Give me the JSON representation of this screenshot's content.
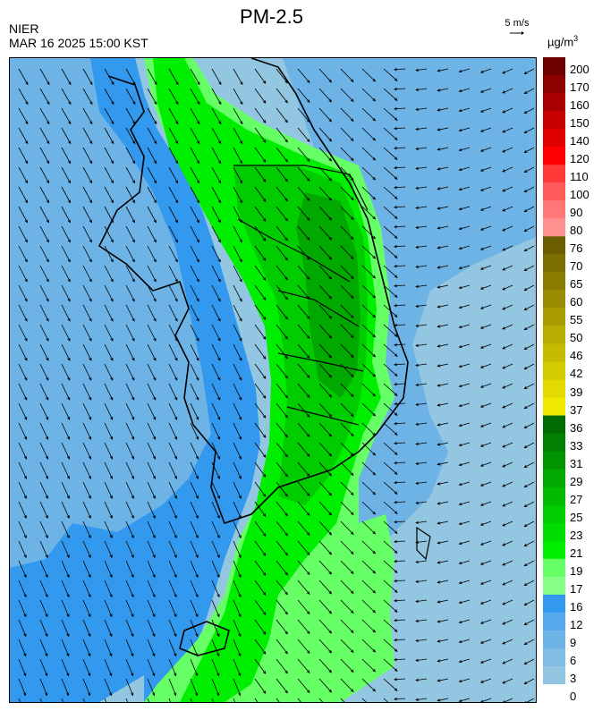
{
  "header": {
    "title": "PM-2.5",
    "agency": "NIER",
    "datetime": "MAR 16 2025 15:00 KST",
    "wind_scale_label": "5 m/s",
    "unit_base": "µg/m",
    "unit_exp": "3"
  },
  "legend": {
    "levels": [
      {
        "label": "200",
        "color": "#6e0000"
      },
      {
        "label": "170",
        "color": "#8c0000"
      },
      {
        "label": "160",
        "color": "#a80000"
      },
      {
        "label": "150",
        "color": "#c80000"
      },
      {
        "label": "140",
        "color": "#e00000"
      },
      {
        "label": "120",
        "color": "#ff0000"
      },
      {
        "label": "110",
        "color": "#ff3838"
      },
      {
        "label": "100",
        "color": "#ff5a5a"
      },
      {
        "label": "90",
        "color": "#ff7777"
      },
      {
        "label": "80",
        "color": "#ff9090"
      },
      {
        "label": "76",
        "color": "#6b5e00"
      },
      {
        "label": "70",
        "color": "#7c6e00"
      },
      {
        "label": "65",
        "color": "#8a7c00"
      },
      {
        "label": "60",
        "color": "#9a8c00"
      },
      {
        "label": "55",
        "color": "#a99c00"
      },
      {
        "label": "50",
        "color": "#b8ac00"
      },
      {
        "label": "46",
        "color": "#c6bb00"
      },
      {
        "label": "42",
        "color": "#d4ca00"
      },
      {
        "label": "39",
        "color": "#e2da00"
      },
      {
        "label": "37",
        "color": "#f0ea00"
      },
      {
        "label": "36",
        "color": "#006b00"
      },
      {
        "label": "33",
        "color": "#007f00"
      },
      {
        "label": "31",
        "color": "#009400"
      },
      {
        "label": "29",
        "color": "#00a800"
      },
      {
        "label": "27",
        "color": "#00bb00"
      },
      {
        "label": "25",
        "color": "#00cc00"
      },
      {
        "label": "23",
        "color": "#00dd00"
      },
      {
        "label": "21",
        "color": "#00ee00"
      },
      {
        "label": "19",
        "color": "#66ff66"
      },
      {
        "label": "17",
        "color": "#88ff88"
      },
      {
        "label": "16",
        "color": "#3399ee"
      },
      {
        "label": "12",
        "color": "#55a8ec"
      },
      {
        "label": "9",
        "color": "#6eb3e6"
      },
      {
        "label": "6",
        "color": "#80bce4"
      },
      {
        "label": "3",
        "color": "#93c6e0"
      },
      {
        "label": "0",
        "color": ""
      }
    ]
  },
  "map": {
    "colors": {
      "sea_light": "#93c6e0",
      "sea_mid": "#6eb3e6",
      "sea_blue": "#3399ee",
      "green_light": "#66ff66",
      "green": "#00ee00",
      "green_mid": "#00cc00",
      "green_dark": "#00a800",
      "coast": "#000000"
    }
  }
}
